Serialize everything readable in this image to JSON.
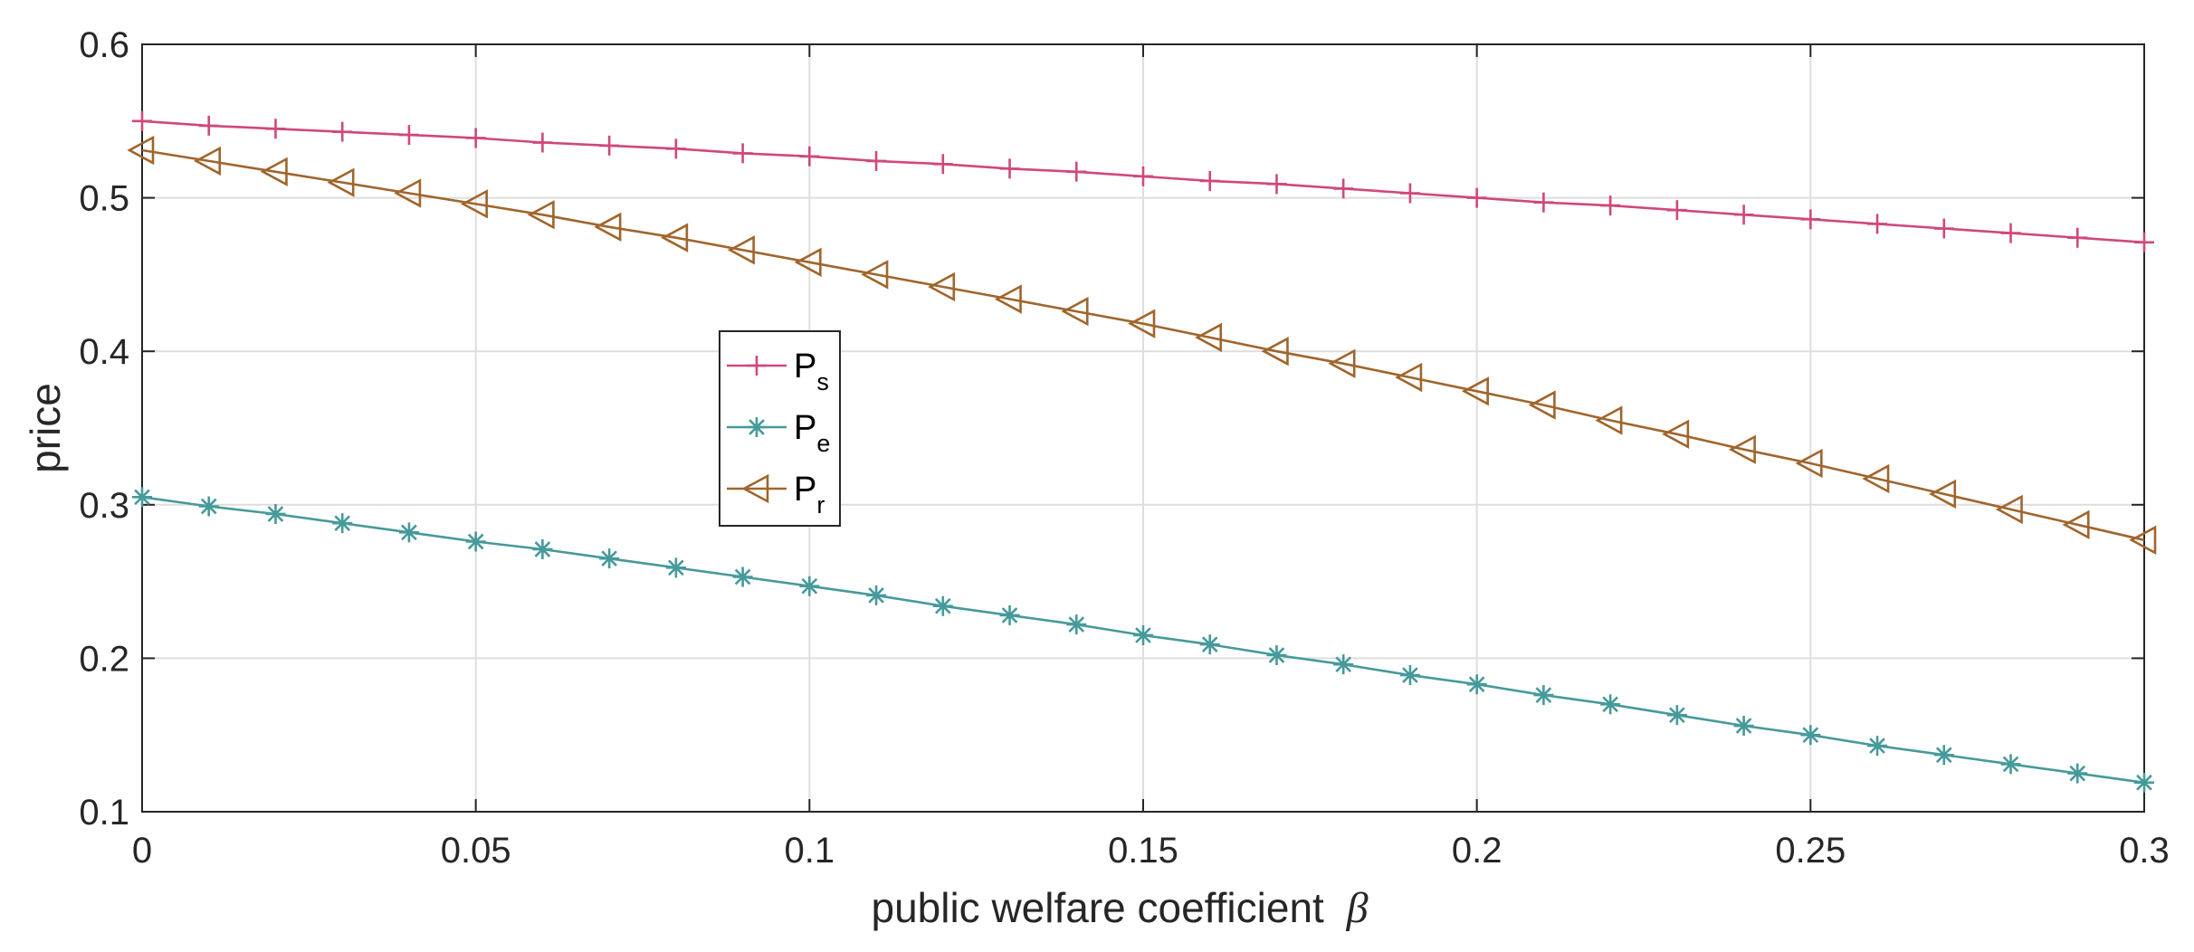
{
  "chart_data": {
    "type": "line",
    "title": "",
    "xlabel": "public welfare coefficient",
    "xlabel_symbol": "β",
    "ylabel": "price",
    "xlim": [
      0,
      0.3
    ],
    "ylim": [
      0.1,
      0.6
    ],
    "grid": true,
    "legend_position": "center-left",
    "x_ticks": [
      0,
      0.05,
      0.1,
      0.15,
      0.2,
      0.25,
      0.3
    ],
    "x_tick_labels": [
      "0",
      "0.05",
      "0.1",
      "0.15",
      "0.2",
      "0.25",
      "0.3"
    ],
    "y_ticks": [
      0.1,
      0.2,
      0.3,
      0.4,
      0.5,
      0.6
    ],
    "y_tick_labels": [
      "0.1",
      "0.2",
      "0.3",
      "0.4",
      "0.5",
      "0.6"
    ],
    "x": [
      0,
      0.01,
      0.02,
      0.03,
      0.04,
      0.05,
      0.06,
      0.07,
      0.08,
      0.09,
      0.1,
      0.11,
      0.12,
      0.13,
      0.14,
      0.15,
      0.16,
      0.17,
      0.18,
      0.19,
      0.2,
      0.21,
      0.22,
      0.23,
      0.24,
      0.25,
      0.26,
      0.27,
      0.28,
      0.29,
      0.3
    ],
    "series": [
      {
        "name": "P",
        "subscript": "s",
        "color": "#D0487B",
        "marker": "plus",
        "values": [
          0.55,
          0.547,
          0.545,
          0.543,
          0.541,
          0.539,
          0.536,
          0.534,
          0.532,
          0.529,
          0.527,
          0.524,
          0.522,
          0.519,
          0.517,
          0.514,
          0.511,
          0.509,
          0.506,
          0.503,
          0.5,
          0.497,
          0.495,
          0.492,
          0.489,
          0.486,
          0.483,
          0.48,
          0.477,
          0.474,
          0.471
        ]
      },
      {
        "name": "P",
        "subscript": "e",
        "color": "#469A9A",
        "marker": "asterisk",
        "values": [
          0.305,
          0.299,
          0.294,
          0.288,
          0.282,
          0.276,
          0.271,
          0.265,
          0.259,
          0.253,
          0.247,
          0.241,
          0.234,
          0.228,
          0.222,
          0.215,
          0.209,
          0.202,
          0.196,
          0.189,
          0.183,
          0.176,
          0.17,
          0.163,
          0.156,
          0.15,
          0.143,
          0.137,
          0.131,
          0.125,
          0.119
        ]
      },
      {
        "name": "P",
        "subscript": "r",
        "color": "#A0652C",
        "marker": "triangle-left",
        "values": [
          0.531,
          0.524,
          0.517,
          0.51,
          0.503,
          0.496,
          0.489,
          0.481,
          0.474,
          0.466,
          0.458,
          0.45,
          0.442,
          0.434,
          0.426,
          0.418,
          0.409,
          0.4,
          0.392,
          0.383,
          0.374,
          0.365,
          0.355,
          0.346,
          0.336,
          0.327,
          0.317,
          0.307,
          0.297,
          0.287,
          0.277
        ]
      }
    ]
  }
}
